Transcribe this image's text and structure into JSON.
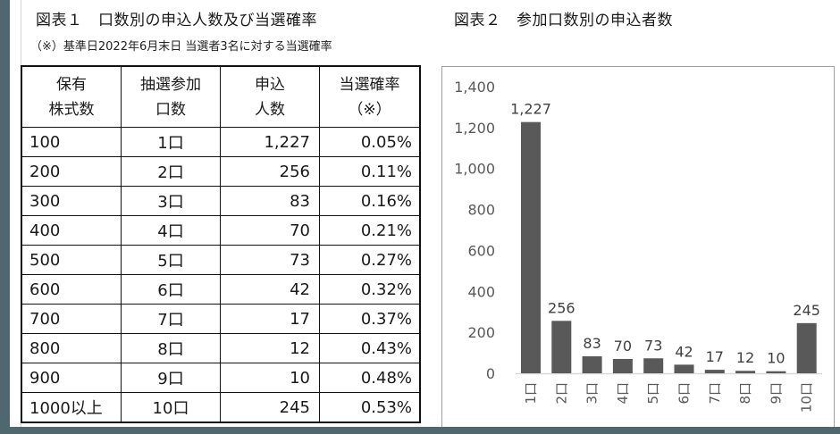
{
  "figure1": {
    "title": "図表１　口数別の申込人数及び当選確率",
    "note": "（※）基準日2022年6月末日 当選者3名に対する当選確率",
    "table": {
      "headers": [
        {
          "line1": "保有",
          "line2": "株式数"
        },
        {
          "line1": "抽選参加",
          "line2": "口数"
        },
        {
          "line1": "申込",
          "line2": "人数"
        },
        {
          "line1": "当選確率",
          "line2": "（※）"
        }
      ],
      "rows": [
        {
          "shares": "100",
          "units": "1口",
          "applicants": "1,227",
          "rate": "0.05%"
        },
        {
          "shares": "200",
          "units": "2口",
          "applicants": "256",
          "rate": "0.11%"
        },
        {
          "shares": "300",
          "units": "3口",
          "applicants": "83",
          "rate": "0.16%"
        },
        {
          "shares": "400",
          "units": "4口",
          "applicants": "70",
          "rate": "0.21%"
        },
        {
          "shares": "500",
          "units": "5口",
          "applicants": "73",
          "rate": "0.27%"
        },
        {
          "shares": "600",
          "units": "6口",
          "applicants": "42",
          "rate": "0.32%"
        },
        {
          "shares": "700",
          "units": "7口",
          "applicants": "17",
          "rate": "0.37%"
        },
        {
          "shares": "800",
          "units": "8口",
          "applicants": "12",
          "rate": "0.43%"
        },
        {
          "shares": "900",
          "units": "9口",
          "applicants": "10",
          "rate": "0.48%"
        },
        {
          "shares": "1000以上",
          "units": "10口",
          "applicants": "245",
          "rate": "0.53%"
        }
      ]
    }
  },
  "figure2": {
    "title": "図表２　参加口数別の申込者数"
  },
  "colors": {
    "bar": "#595959",
    "axis": "#d9d9d9",
    "background_outer": "#4f6870"
  },
  "chart_data": [
    {
      "type": "table",
      "title": "図表１　口数別の申込人数及び当選確率",
      "subtitle": "（※）基準日2022年6月末日 当選者3名に対する当選確率",
      "columns": [
        "保有株式数",
        "抽選参加口数",
        "申込人数",
        "当選確率（※）"
      ],
      "rows": [
        [
          "100",
          "1口",
          1227,
          "0.05%"
        ],
        [
          "200",
          "2口",
          256,
          "0.11%"
        ],
        [
          "300",
          "3口",
          83,
          "0.16%"
        ],
        [
          "400",
          "4口",
          70,
          "0.21%"
        ],
        [
          "500",
          "5口",
          73,
          "0.27%"
        ],
        [
          "600",
          "6口",
          42,
          "0.32%"
        ],
        [
          "700",
          "7口",
          17,
          "0.37%"
        ],
        [
          "800",
          "8口",
          12,
          "0.43%"
        ],
        [
          "900",
          "9口",
          10,
          "0.48%"
        ],
        [
          "1000以上",
          "10口",
          245,
          "0.53%"
        ]
      ]
    },
    {
      "type": "bar",
      "title": "図表２　参加口数別の申込者数",
      "categories": [
        "1口",
        "2口",
        "3口",
        "4口",
        "5口",
        "6口",
        "7口",
        "8口",
        "9口",
        "10口"
      ],
      "values": [
        1227,
        256,
        83,
        70,
        73,
        42,
        17,
        12,
        10,
        245
      ],
      "data_labels": [
        "1,227",
        "256",
        "83",
        "70",
        "73",
        "42",
        "17",
        "12",
        "10",
        "245"
      ],
      "xlabel": "",
      "ylabel": "",
      "ylim": [
        0,
        1400
      ],
      "yticks": [
        0,
        200,
        400,
        600,
        800,
        1000,
        1200,
        1400
      ],
      "ytick_labels": [
        "0",
        "200",
        "400",
        "600",
        "800",
        "1,000",
        "1,200",
        "1,400"
      ],
      "grid": false,
      "legend": null,
      "x_label_rotation": -90
    }
  ]
}
